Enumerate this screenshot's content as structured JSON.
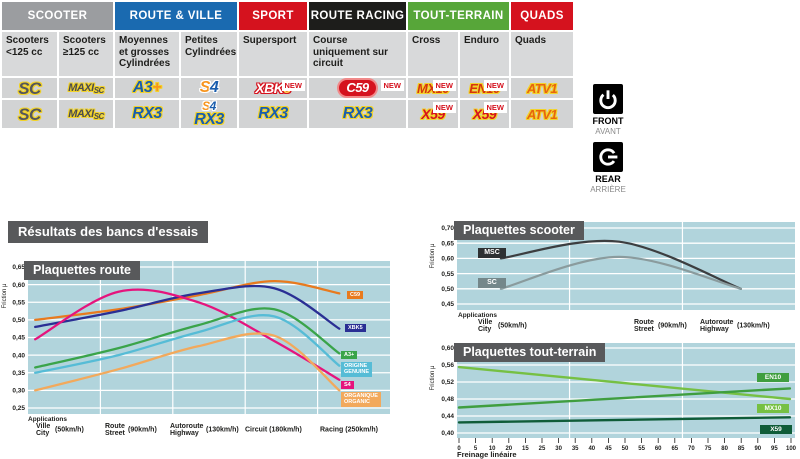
{
  "table": {
    "groups": [
      {
        "label": "SCOOTER",
        "color": "#9b9da0",
        "span": 2
      },
      {
        "label": "ROUTE & VILLE",
        "color": "#1a6ab0",
        "span": 2
      },
      {
        "label": "SPORT",
        "color": "#d5121e",
        "span": 1
      },
      {
        "label": "ROUTE RACING",
        "color": "#1d1d1b",
        "span": 1
      },
      {
        "label": "TOUT-TERRAIN",
        "color": "#57a639",
        "span": 2
      },
      {
        "label": "QUADS",
        "color": "#d5121e",
        "span": 1
      }
    ],
    "subheaders": [
      "Scooters <125 cc",
      "Scooters ≥125 cc",
      "Moyennes et grosses Cylindrées",
      "Petites Cylindrées",
      "Supersport",
      "Course uniquement sur circuit",
      "Cross",
      "Enduro",
      "Quads"
    ],
    "new_label": "NEW",
    "rows": {
      "front": {
        "cells": [
          {
            "badges": [
              "SC"
            ],
            "new": false
          },
          {
            "badges": [
              "MAXI-SC"
            ],
            "new": false
          },
          {
            "badges": [
              "A3+"
            ],
            "new": false
          },
          {
            "badges": [
              "S4"
            ],
            "new": false
          },
          {
            "badges": [
              "XBK5"
            ],
            "new": true
          },
          {
            "badges": [
              "C59"
            ],
            "new": true
          },
          {
            "badges": [
              "MX10"
            ],
            "new": true
          },
          {
            "badges": [
              "EN10"
            ],
            "new": true
          },
          {
            "badges": [
              "ATV1"
            ],
            "new": false
          }
        ]
      },
      "rear": {
        "cells": [
          {
            "badges": [
              "SC"
            ],
            "new": false
          },
          {
            "badges": [
              "MAXI-SC"
            ],
            "new": false
          },
          {
            "badges": [
              "RX3"
            ],
            "new": false
          },
          {
            "badges": [
              "S4",
              "RX3"
            ],
            "new": false
          },
          {
            "badges": [
              "RX3"
            ],
            "new": false
          },
          {
            "badges": [
              "RX3"
            ],
            "new": false
          },
          {
            "badges": [
              "X59"
            ],
            "new": true
          },
          {
            "badges": [
              "X59"
            ],
            "new": true
          },
          {
            "badges": [
              "ATV1"
            ],
            "new": false
          }
        ]
      }
    },
    "axle": {
      "front": {
        "label": "FRONT",
        "label_fr": "AVANT"
      },
      "rear": {
        "label": "REAR",
        "label_fr": "ARRIÈRE"
      }
    }
  },
  "results_title": "Résultats des bancs d'essais",
  "chart_data": [
    {
      "id": "route",
      "type": "line",
      "title": "Plaquettes route",
      "ylabel": "Friction μ",
      "applications_label": "Applications",
      "ymin": 0.25,
      "ymax": 0.65,
      "y_ticks": [
        "0,65",
        "0,60",
        "0,55",
        "0,50",
        "0,45",
        "0,40",
        "0,35",
        "0,30",
        "0,25"
      ],
      "x_labels": [
        {
          "fr": "Ville",
          "en": "City",
          "speed": "(50km/h)"
        },
        {
          "fr": "Route",
          "en": "Street",
          "speed": "(90km/h)"
        },
        {
          "fr": "Autoroute",
          "en": "Highway",
          "speed": "(130km/h)"
        },
        {
          "fr": "Circuit",
          "en": "",
          "speed": "(180km/h)"
        },
        {
          "fr": "Racing",
          "en": "",
          "speed": "(250km/h)"
        }
      ],
      "series": [
        {
          "label": "C59",
          "color": "#e87a1e",
          "values": [
            0.5,
            0.53,
            0.57,
            0.61,
            0.575
          ]
        },
        {
          "label": "XBK5",
          "color": "#2a2f94",
          "values": [
            0.48,
            0.525,
            0.575,
            0.59,
            0.475
          ]
        },
        {
          "label": "S4",
          "color": "#e5147d",
          "values": [
            0.445,
            0.58,
            0.55,
            0.44,
            0.33
          ]
        },
        {
          "label": "A3+",
          "color": "#3aa44a",
          "values": [
            0.365,
            0.42,
            0.485,
            0.53,
            0.405
          ]
        },
        {
          "label": "ORIGINE\nGENUINE",
          "color": "#56bcd6",
          "values": [
            0.35,
            0.4,
            0.465,
            0.51,
            0.37
          ]
        },
        {
          "label": "ORGANIQUE\nORGANIC",
          "color": "#f2a95c",
          "values": [
            0.3,
            0.36,
            0.425,
            0.455,
            0.3
          ]
        }
      ]
    },
    {
      "id": "scooter",
      "type": "line",
      "title": "Plaquettes scooter",
      "ylabel": "Friction μ",
      "applications_label": "Applications",
      "ymin": 0.45,
      "ymax": 0.7,
      "y_ticks": [
        "0,70",
        "0,65",
        "0,60",
        "0,55",
        "0,50",
        "0,45"
      ],
      "x_labels": [
        {
          "fr": "Ville",
          "en": "City",
          "speed": "(50km/h)"
        },
        {
          "fr": "Route",
          "en": "Street",
          "speed": "(90km/h)"
        },
        {
          "fr": "Autoroute",
          "en": "Highway",
          "speed": "(130km/h)"
        }
      ],
      "series": [
        {
          "label": "MSC",
          "color": "#3c3e40",
          "legend_bg": "#2e3133",
          "values": [
            0.6,
            0.655,
            0.5
          ]
        },
        {
          "label": "SC",
          "color": "#8a9b9d",
          "legend_bg": "#74878a",
          "values": [
            0.5,
            0.605,
            0.5
          ]
        }
      ]
    },
    {
      "id": "terrain",
      "type": "line",
      "title": "Plaquettes tout-terrain",
      "ylabel": "Friction μ",
      "xlabel": "Freinage linéaire",
      "ymin": 0.4,
      "ymax": 0.6,
      "y_ticks": [
        "0,60",
        "0,56",
        "0,52",
        "0,48",
        "0,44",
        "0,40"
      ],
      "x_ticks": [
        "0",
        "5",
        "10",
        "20",
        "15",
        "25",
        "30",
        "35",
        "40",
        "45",
        "50",
        "55",
        "60",
        "65",
        "70",
        "75",
        "80",
        "85",
        "90",
        "95",
        "100"
      ],
      "series": [
        {
          "label": "MX10",
          "color": "#76c043",
          "values": [
            0.555,
            0.48
          ]
        },
        {
          "label": "EN10",
          "color": "#3f9e3f",
          "values": [
            0.46,
            0.505
          ]
        },
        {
          "label": "X59",
          "color": "#0f5c38",
          "values": [
            0.425,
            0.437
          ]
        }
      ]
    }
  ]
}
